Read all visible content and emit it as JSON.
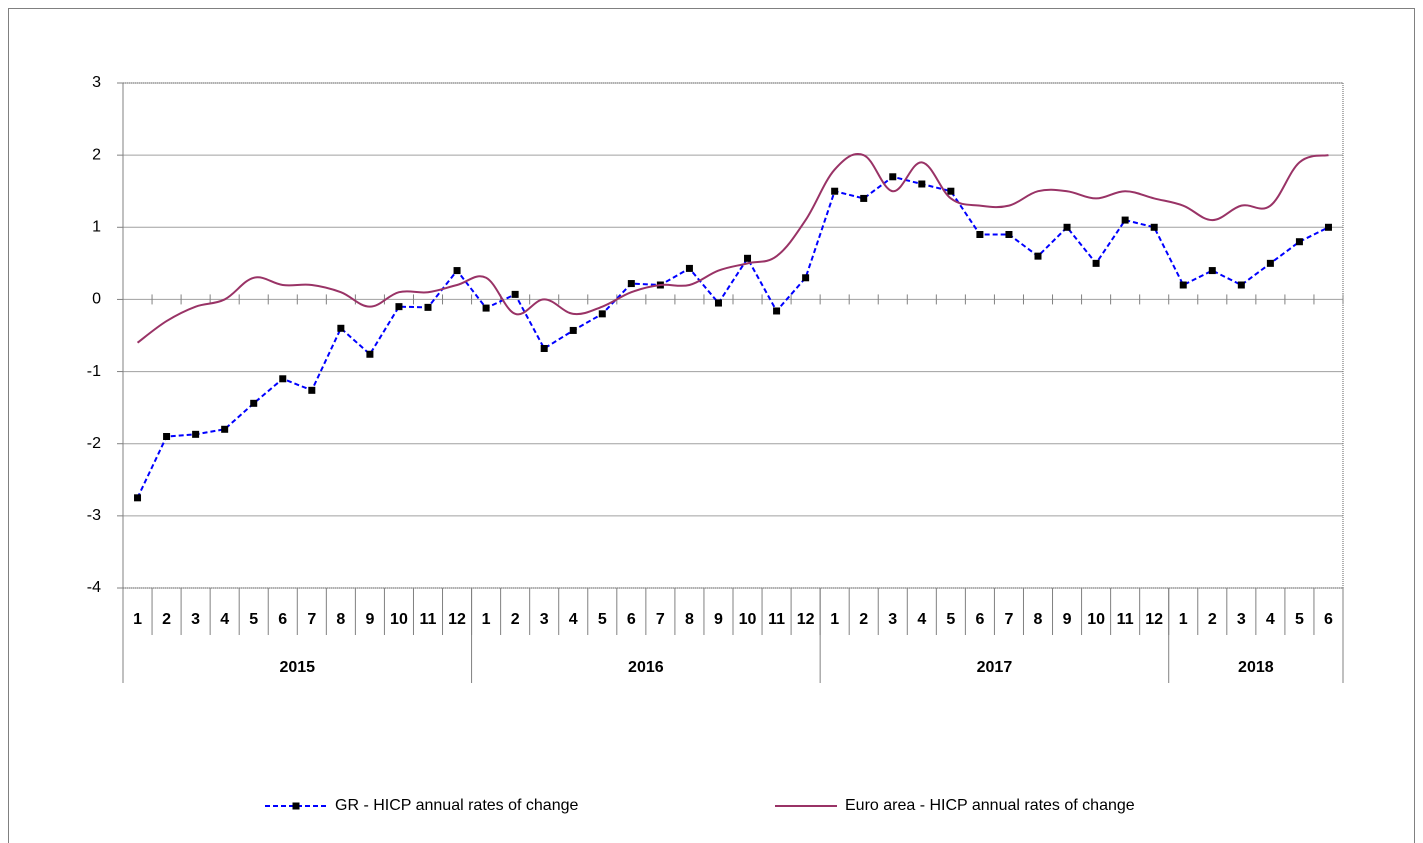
{
  "chart_data": {
    "type": "line",
    "categories": [
      "1",
      "2",
      "3",
      "4",
      "5",
      "6",
      "7",
      "8",
      "9",
      "10",
      "11",
      "12",
      "1",
      "2",
      "3",
      "4",
      "5",
      "6",
      "7",
      "8",
      "9",
      "10",
      "11",
      "12",
      "1",
      "2",
      "3",
      "4",
      "5",
      "6",
      "7",
      "8",
      "9",
      "10",
      "11",
      "12",
      "1",
      "2",
      "3",
      "4",
      "5",
      "6"
    ],
    "groups": [
      "2015",
      "2016",
      "2017",
      "2018"
    ],
    "series": [
      {
        "name": "GR - HICP annual rates of change",
        "color": "#0000ff",
        "style": "dashed-markers",
        "values": [
          -2.75,
          -1.9,
          -1.87,
          -1.8,
          -1.44,
          -1.1,
          -1.26,
          -0.4,
          -0.76,
          -0.1,
          -0.11,
          0.4,
          -0.12,
          0.07,
          -0.68,
          -0.43,
          -0.2,
          0.22,
          0.2,
          0.43,
          -0.05,
          0.57,
          -0.16,
          0.3,
          1.5,
          1.4,
          1.7,
          1.6,
          1.5,
          0.9,
          0.9,
          0.6,
          1.0,
          0.5,
          1.1,
          1.0,
          0.2,
          0.4,
          0.2,
          0.5,
          0.8,
          1.0
        ]
      },
      {
        "name": "Euro area - HICP annual rates of change",
        "color": "#993366",
        "style": "smooth",
        "values": [
          -0.6,
          -0.3,
          -0.1,
          0.0,
          0.3,
          0.2,
          0.2,
          0.1,
          -0.1,
          0.1,
          0.1,
          0.2,
          0.3,
          -0.2,
          0.0,
          -0.2,
          -0.1,
          0.1,
          0.2,
          0.2,
          0.4,
          0.5,
          0.6,
          1.1,
          1.8,
          2.0,
          1.5,
          1.9,
          1.4,
          1.3,
          1.3,
          1.5,
          1.5,
          1.4,
          1.5,
          1.4,
          1.3,
          1.1,
          1.3,
          1.3,
          1.9,
          2.0
        ]
      }
    ],
    "ylim": [
      -4,
      3
    ],
    "yticks": [
      -4,
      -3,
      -2,
      -1,
      0,
      1,
      2,
      3
    ],
    "grid": true,
    "legend": "bottom"
  }
}
